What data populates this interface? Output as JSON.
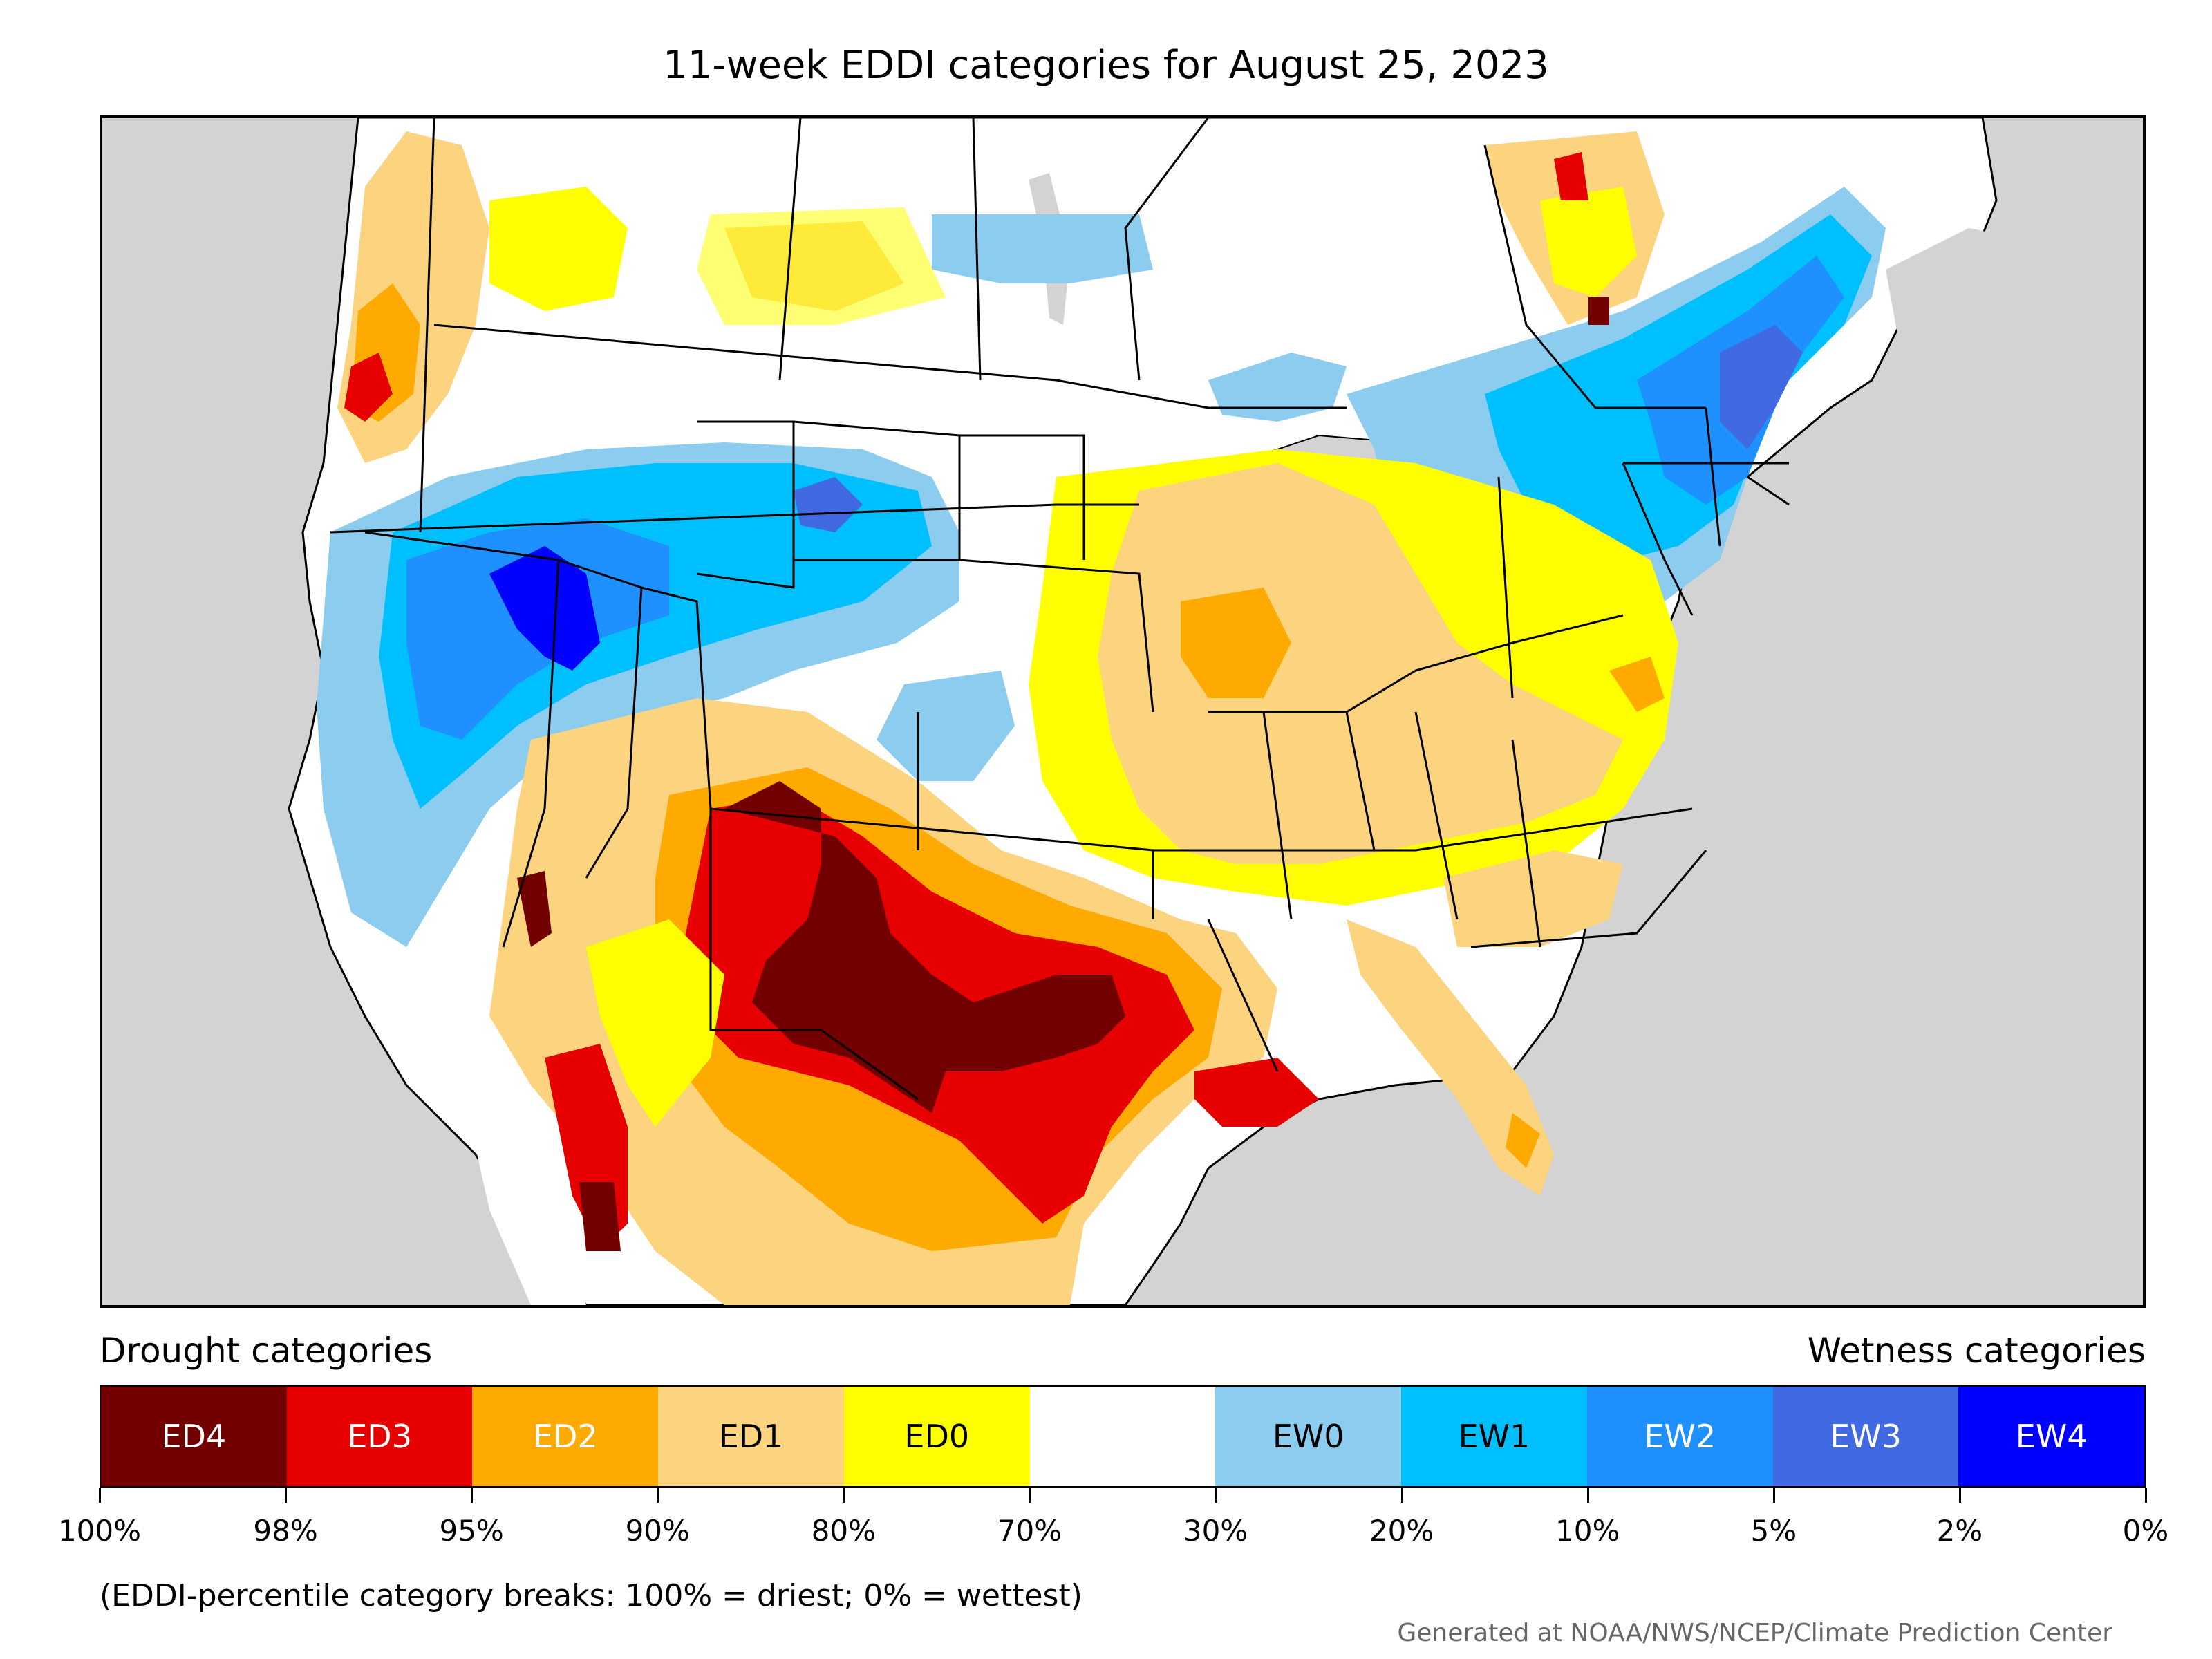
{
  "title": "11-week EDDI categories for August 25, 2023",
  "legend": {
    "left_heading": "Drought categories",
    "right_heading": "Wetness categories",
    "categories": [
      {
        "label": "ED4",
        "color": "#730000",
        "text_color": "#ffffff"
      },
      {
        "label": "ED3",
        "color": "#e60000",
        "text_color": "#ffffff"
      },
      {
        "label": "ED2",
        "color": "#ffaa00",
        "text_color": "#ffffff"
      },
      {
        "label": "ED1",
        "color": "#fcd37f",
        "text_color": "#000000"
      },
      {
        "label": "ED0",
        "color": "#ffff00",
        "text_color": "#000000"
      },
      {
        "label": "",
        "color": "#ffffff",
        "text_color": "#000000"
      },
      {
        "label": "EW0",
        "color": "#8ccdef",
        "text_color": "#000000"
      },
      {
        "label": "EW1",
        "color": "#00bfff",
        "text_color": "#000000"
      },
      {
        "label": "EW2",
        "color": "#1e90ff",
        "text_color": "#ffffff"
      },
      {
        "label": "EW3",
        "color": "#4169e1",
        "text_color": "#ffffff"
      },
      {
        "label": "EW4",
        "color": "#0000ff",
        "text_color": "#ffffff"
      }
    ],
    "breaks": [
      "100%",
      "98%",
      "95%",
      "90%",
      "80%",
      "70%",
      "30%",
      "20%",
      "10%",
      "5%",
      "2%",
      "0%"
    ]
  },
  "note": "(EDDI-percentile category breaks: 100% = driest; 0% = wettest)",
  "credit": "Generated at NOAA/NWS/NCEP/Climate Prediction Center",
  "map": {
    "background_color": "#d3d3d3",
    "land_color": "#ffffff",
    "border_color": "#000000"
  }
}
